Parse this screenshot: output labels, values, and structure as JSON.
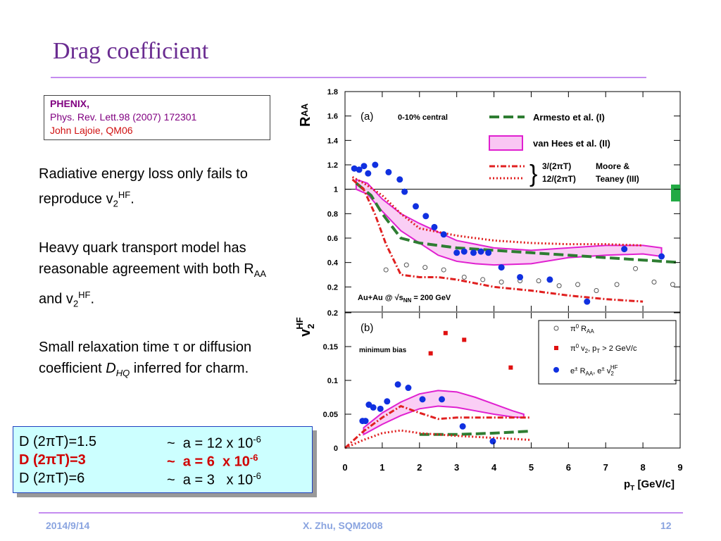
{
  "title": "Drag coefficient",
  "reference": {
    "line1": "PHENIX,",
    "line2": "Phys. Rev. Lett.98 (2007) 172301",
    "line3": "John Lajoie, QM06"
  },
  "bullets": [
    [
      "Radiative energy loss only fails to reproduce v",
      "2",
      "HF",
      "."
    ],
    [
      "Heavy quark transport model has reasonable agreement with both R",
      "AA",
      " and v",
      "2",
      "HF",
      "."
    ],
    [
      "Small relaxation time ",
      "τ",
      " or diffusion coefficient ",
      "D",
      "HQ",
      " inferred for charm."
    ]
  ],
  "formula_box": [
    {
      "left": "D (2πT)=1.5",
      "right": "~  a = 12 x 10",
      "exp": "-6"
    },
    {
      "left": "D (2πT)=3",
      "right": "~  a = 6  x 10",
      "exp": "-6"
    },
    {
      "left": "D (2πT)=6",
      "right": "~  a = 3   x 10",
      "exp": "-6"
    }
  ],
  "footer": {
    "date": "2014/9/14",
    "author": "X. Zhu, SQM2008",
    "page": "12"
  },
  "figure": {
    "x_label": [
      "p",
      "T",
      " [GeV/c]"
    ],
    "xlim": [
      0,
      9
    ],
    "xticks": [
      0,
      1,
      2,
      3,
      4,
      5,
      6,
      7,
      8,
      9
    ],
    "panels": [
      {
        "label": "(a)",
        "note": "0-10% central",
        "y_label": [
          "R",
          "AA"
        ],
        "energy": [
          "Au+Au @ ",
          "√s",
          "NN",
          " = 200 GeV"
        ],
        "ylim": [
          0,
          1.8
        ],
        "yticks": [
          0.2,
          0.4,
          0.6,
          0.8,
          1,
          1.2,
          1.4,
          1.6,
          1.8
        ],
        "reference_line": 1,
        "legend": [
          "Armesto et al. (I)",
          "van Hees et al. (II)",
          "3/(2πT)",
          "12/(2πT)",
          "Moore &",
          "Teaney (III)"
        ],
        "series": [
          {
            "style": "band",
            "color": "#e020d0",
            "x": [
              0.3,
              0.6,
              1,
              1.5,
              2,
              2.5,
              3,
              3.5,
              4,
              5,
              6,
              7,
              8,
              8.5
            ],
            "upper": [
              1.08,
              1.05,
              0.92,
              0.8,
              0.72,
              0.65,
              0.58,
              0.55,
              0.52,
              0.5,
              0.52,
              0.54,
              0.54,
              0.52
            ],
            "lower": [
              1.0,
              0.96,
              0.82,
              0.66,
              0.56,
              0.46,
              0.41,
              0.39,
              0.38,
              0.39,
              0.44,
              0.46,
              0.47,
              0.45
            ]
          },
          {
            "style": "dash",
            "color": "#2e7d32",
            "x": [
              0.3,
              0.7,
              1,
              1.5,
              2,
              3,
              4,
              5,
              6,
              7,
              8,
              9
            ],
            "values": [
              1.05,
              0.95,
              0.8,
              0.6,
              0.56,
              0.52,
              0.5,
              0.48,
              0.46,
              0.44,
              0.42,
              0.4
            ]
          },
          {
            "style": "dashdot",
            "color": "#e02020",
            "x": [
              0.2,
              0.5,
              0.8,
              1.1,
              1.5,
              2,
              2.5,
              3,
              3.5,
              4,
              5,
              6,
              7,
              8
            ],
            "values": [
              1.08,
              1.0,
              0.8,
              0.55,
              0.3,
              0.28,
              0.28,
              0.26,
              0.23,
              0.2,
              0.17,
              0.13,
              0.1,
              0.08
            ]
          },
          {
            "style": "dot",
            "color": "#e02020",
            "x": [
              0.2,
              0.5,
              1,
              1.5,
              2,
              3,
              4,
              5,
              6,
              7,
              8
            ],
            "values": [
              1.1,
              1.05,
              0.95,
              0.8,
              0.68,
              0.62,
              0.58,
              0.56,
              0.55,
              0.55,
              0.54
            ]
          },
          {
            "style": "circle-open",
            "color": "#555555",
            "x": [
              1.1,
              1.65,
              2.15,
              2.65,
              3.2,
              3.7,
              4.2,
              4.7,
              5.2,
              5.75,
              6.25,
              6.75,
              7.3,
              7.8,
              8.3,
              8.8
            ],
            "values": [
              0.34,
              0.38,
              0.36,
              0.34,
              0.28,
              0.26,
              0.24,
              0.25,
              0.25,
              0.21,
              0.22,
              0.17,
              0.22,
              0.35,
              0.24,
              0.22
            ]
          },
          {
            "style": "circle-filled",
            "color": "#1030e0",
            "x": [
              0.25,
              0.38,
              0.51,
              0.62,
              0.81,
              1.17,
              1.47,
              1.6,
              1.9,
              2.17,
              2.4,
              2.65,
              3.0,
              3.2,
              3.45,
              3.65,
              3.85,
              4.2,
              4.7,
              5.5,
              6.5,
              7.5,
              8.5
            ],
            "values": [
              1.17,
              1.16,
              1.19,
              1.13,
              1.2,
              1.14,
              1.08,
              0.98,
              0.86,
              0.78,
              0.69,
              0.63,
              0.48,
              0.49,
              0.48,
              0.49,
              0.48,
              0.36,
              0.28,
              0.26,
              0.08,
              0.51,
              0.45
            ]
          }
        ]
      },
      {
        "label": "(b)",
        "note": "minimum bias",
        "y_label": [
          "v",
          "2",
          "HF"
        ],
        "ylim": [
          0,
          0.2
        ],
        "yticks": [
          0,
          0.05,
          0.1,
          0.15,
          0.2
        ],
        "legend": [
          [
            "π",
            "0",
            " R",
            "AA"
          ],
          [
            "π",
            "0",
            " v",
            "2",
            ", p",
            "T",
            " > 2 GeV/c"
          ],
          [
            "e",
            "±",
            " R",
            "AA",
            ", e",
            "±",
            " v",
            "2",
            "HF"
          ]
        ],
        "series": [
          {
            "style": "band",
            "color": "#e020d0",
            "x": [
              0.5,
              1,
              1.5,
              2,
              2.5,
              3,
              3.5,
              4,
              4.5,
              4.8
            ],
            "upper": [
              0.03,
              0.052,
              0.068,
              0.08,
              0.085,
              0.083,
              0.075,
              0.065,
              0.055,
              0.05
            ],
            "lower": [
              0.02,
              0.035,
              0.048,
              0.058,
              0.062,
              0.06,
              0.055,
              0.05,
              0.046,
              0.045
            ]
          },
          {
            "style": "dash",
            "color": "#2e7d32",
            "x": [
              2,
              3,
              4,
              5
            ],
            "values": [
              0.02,
              0.02,
              0.022,
              0.025
            ]
          },
          {
            "style": "dashdot",
            "color": "#e02020",
            "x": [
              0,
              0.5,
              1,
              1.5,
              2,
              2.5,
              3,
              4,
              5
            ],
            "values": [
              0,
              0.025,
              0.045,
              0.062,
              0.052,
              0.043,
              0.045,
              0.045,
              0.045
            ]
          },
          {
            "style": "dot",
            "color": "#e02020",
            "x": [
              0,
              0.5,
              1,
              1.5,
              2,
              2.5,
              3,
              4,
              5
            ],
            "values": [
              0,
              0.012,
              0.022,
              0.026,
              0.022,
              0.02,
              0.018,
              0.015,
              0.012
            ]
          },
          {
            "style": "square",
            "color": "#e01010",
            "x": [
              2.3,
              2.7,
              3.2,
              4.45
            ],
            "values": [
              0.14,
              0.17,
              0.16,
              0.119
            ]
          },
          {
            "style": "circle-filled",
            "color": "#1030e0",
            "x": [
              0.47,
              0.55,
              0.64,
              0.76,
              0.95,
              1.13,
              1.42,
              1.7,
              2.08,
              2.6,
              3.16,
              3.97
            ],
            "values": [
              0.04,
              0.04,
              0.064,
              0.06,
              0.058,
              0.069,
              0.094,
              0.089,
              0.072,
              0.072,
              0.032,
              0.01
            ]
          }
        ]
      }
    ]
  }
}
